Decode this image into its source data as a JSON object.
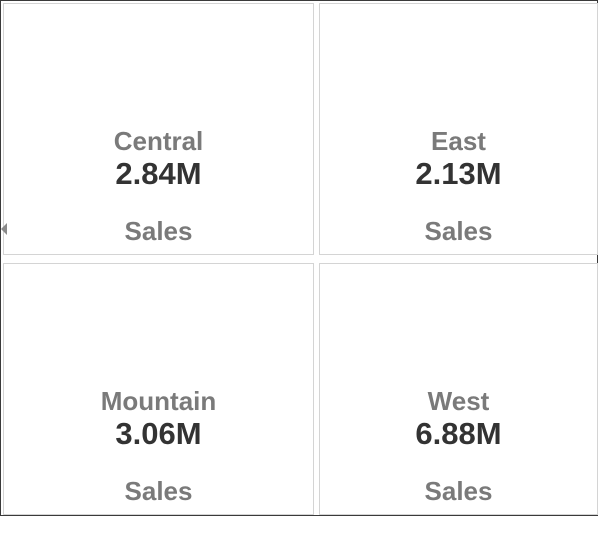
{
  "tiles": [
    {
      "region": "Central",
      "metric": "Sales",
      "value": "2.84M"
    },
    {
      "region": "East",
      "metric": "Sales",
      "value": "2.13M"
    },
    {
      "region": "Mountain",
      "metric": "Sales",
      "value": "3.06M"
    },
    {
      "region": "West",
      "metric": "Sales",
      "value": "6.88M"
    }
  ],
  "icons": {
    "edge_handle": "chevron-left-icon"
  },
  "colors": {
    "label": "#7a7a7a",
    "value": "#333333",
    "tile_border": "#d4d4d4",
    "frame_border": "#3a3a3a"
  }
}
